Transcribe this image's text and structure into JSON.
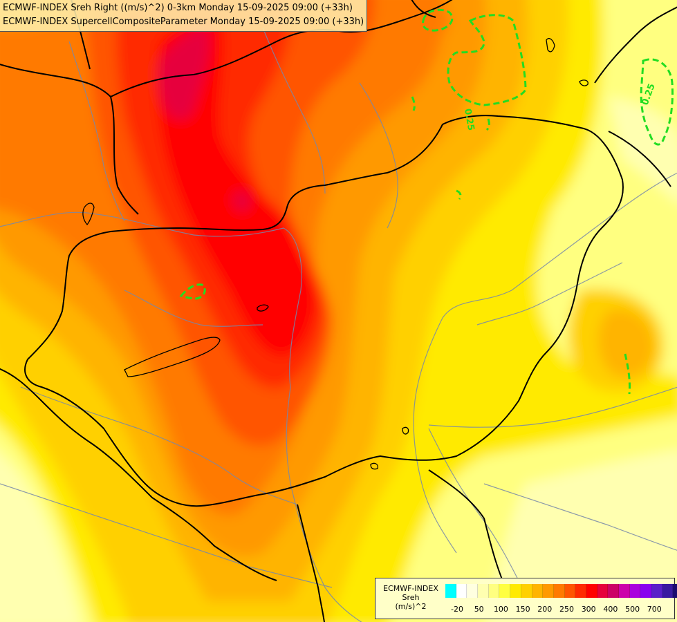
{
  "titles": [
    "ECMWF-INDEX Sreh Right ((m/s)^2) 0-3km Monday 15-09-2025 09:00 (+33h)",
    "ECMWF-INDEX SupercellCompositeParameter Monday 15-09-2025 09:00 (+33h)"
  ],
  "contour_labels": [
    "0.25",
    "0.25"
  ],
  "contour_color": "#22dd22",
  "legend": {
    "line1": "ECMWF-INDEX",
    "line2": "Sreh",
    "line3": "(m/s)^2",
    "colors": [
      "#00ffff",
      "#ffffff",
      "#ffffe0",
      "#ffffb0",
      "#ffff80",
      "#ffff40",
      "#ffea00",
      "#ffd000",
      "#ffb400",
      "#ff9900",
      "#ff7a00",
      "#ff5500",
      "#ff2a00",
      "#ff0000",
      "#e6003c",
      "#cc0066",
      "#cc00aa",
      "#aa00dd",
      "#8800ee",
      "#5a20c8",
      "#3a1aa0",
      "#1c0a70"
    ],
    "ticks": [
      "-20",
      "50",
      "100",
      "150",
      "200",
      "250",
      "300",
      "400",
      "500",
      "700"
    ]
  },
  "colors": {
    "background": "#ffff80",
    "border_country": "#000000",
    "river": "#7788aa"
  }
}
